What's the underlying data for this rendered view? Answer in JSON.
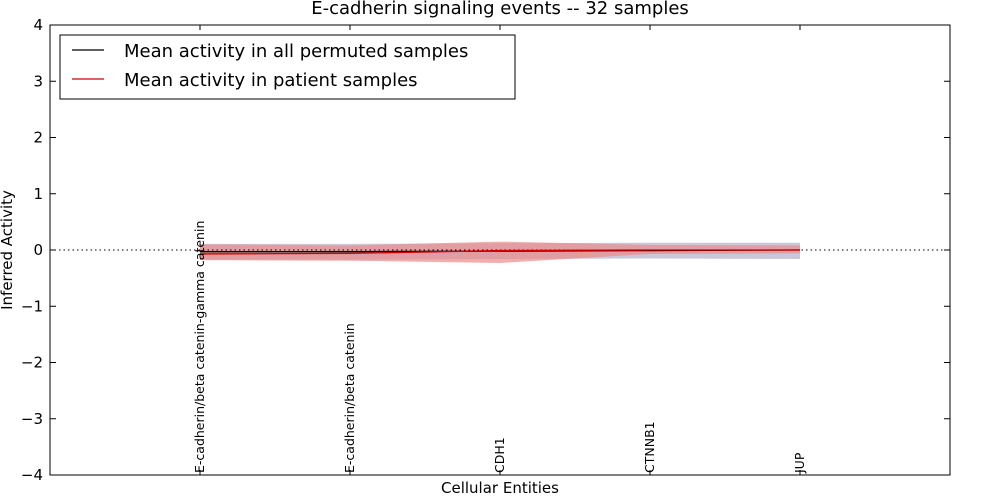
{
  "chart_data": {
    "type": "line",
    "title": "E-cadherin signaling events -- 32 samples",
    "xlabel": "Cellular Entities",
    "ylabel": "Inferred Activity",
    "ylim": [
      -4,
      4
    ],
    "yticks": [
      4,
      3,
      2,
      1,
      0,
      -1,
      -2,
      -3,
      -4
    ],
    "ytick_labels": [
      "4",
      "3",
      "2",
      "1",
      "0",
      "−1",
      "−2",
      "−3",
      "−4"
    ],
    "categories": [
      "E-cadherin/beta catenin-gamma catenin",
      "E-cadherin/beta catenin",
      "CDH1",
      "CTNNB1",
      "JUP"
    ],
    "series": [
      {
        "name": "Mean activity in all permuted samples",
        "color": "#000000",
        "values": [
          -0.03,
          -0.03,
          -0.02,
          -0.01,
          0.0
        ],
        "band_low": [
          -0.17,
          -0.17,
          -0.16,
          -0.15,
          -0.16
        ],
        "band_high": [
          0.11,
          0.11,
          0.12,
          0.13,
          0.13
        ],
        "band_color": "#b6b6cc"
      },
      {
        "name": "Mean activity in patient samples",
        "color": "#d40000",
        "values": [
          -0.07,
          -0.06,
          -0.01,
          0.0,
          0.0
        ],
        "band_low": [
          -0.18,
          -0.19,
          -0.23,
          -0.07,
          -0.06
        ],
        "band_high": [
          0.1,
          0.08,
          0.15,
          0.09,
          0.08
        ],
        "band_color": "#ec8a8a"
      }
    ],
    "zero_line": "dotted",
    "legend": {
      "location": "upper-left"
    }
  }
}
